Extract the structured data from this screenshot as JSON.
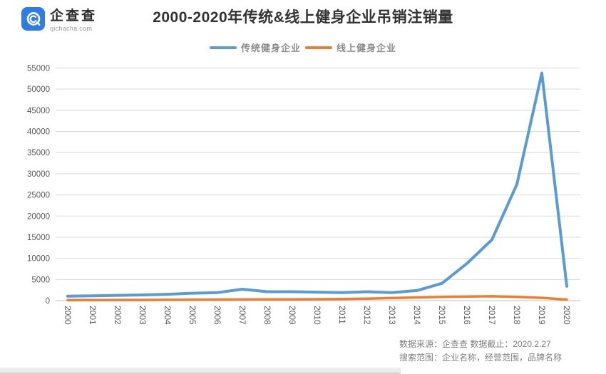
{
  "logo": {
    "name": "企查查",
    "domain": "qichacha.com"
  },
  "title": "2000-2020年传统&线上健身企业吊销注销量",
  "footer": {
    "line1": "数据来源：企查查 数据截止：2020.2.27",
    "line2": "搜索范围：企业名称，经营范围，品牌名称"
  },
  "colors": {
    "logo_blue": "#2F7DE0",
    "grid": "#D9D9D9",
    "axis": "#BFBFBF",
    "tick_text": "#595959",
    "legend_text": "#8C8C8C",
    "title_text": "#333333",
    "footer_text": "#808080"
  },
  "chart_data": {
    "type": "line",
    "title": "2000-2020年传统&线上健身企业吊销注销量",
    "x": [
      "2000",
      "2001",
      "2002",
      "2003",
      "2004",
      "2005",
      "2006",
      "2007",
      "2008",
      "2009",
      "2010",
      "2011",
      "2012",
      "2013",
      "2014",
      "2015",
      "2016",
      "2017",
      "2018",
      "2019",
      "2020"
    ],
    "series": [
      {
        "name": "传统健身企业",
        "color": "#5B9BD5",
        "values": [
          1050,
          1150,
          1250,
          1350,
          1500,
          1750,
          1900,
          2700,
          2100,
          2100,
          2000,
          1900,
          2100,
          1900,
          2400,
          4100,
          8800,
          14400,
          27500,
          53800,
          3400
        ]
      },
      {
        "name": "线上健身企业",
        "color": "#ED7D31",
        "values": [
          130,
          140,
          150,
          160,
          180,
          200,
          230,
          270,
          290,
          310,
          340,
          390,
          480,
          600,
          750,
          870,
          980,
          1020,
          900,
          650,
          250
        ]
      }
    ],
    "ylim": [
      0,
      55000
    ],
    "y_tick_step": 5000,
    "grid": true,
    "legend_position": "top",
    "xlabel": "",
    "ylabel": ""
  }
}
